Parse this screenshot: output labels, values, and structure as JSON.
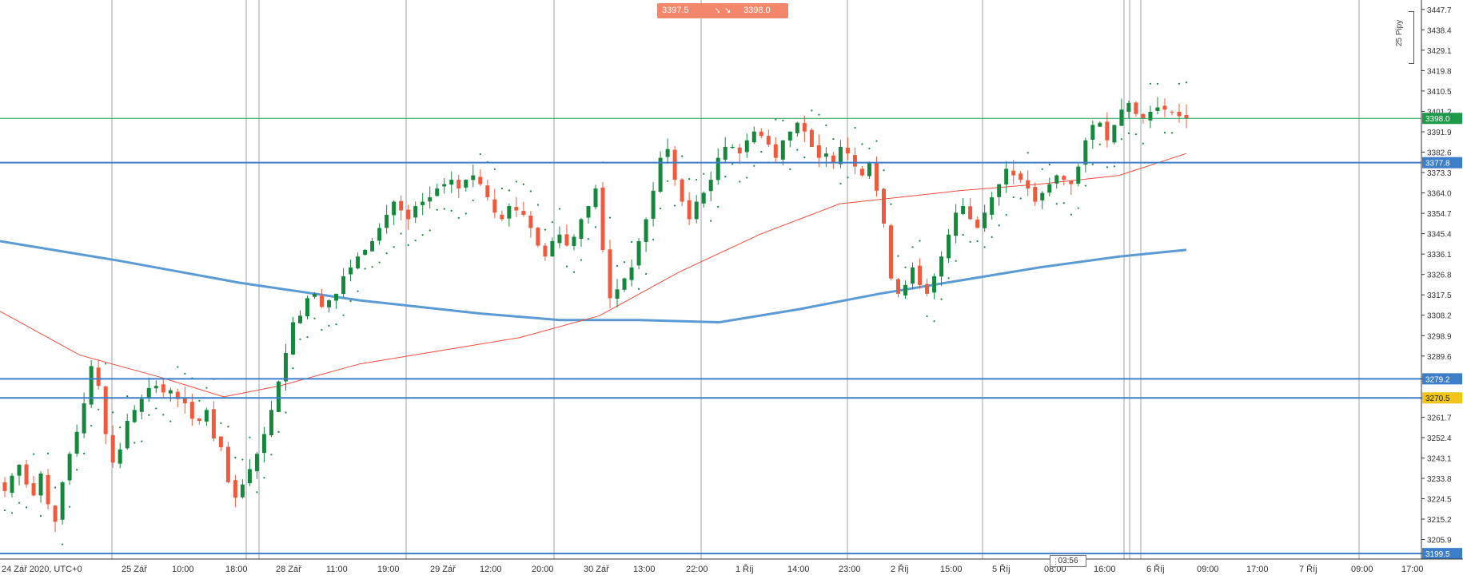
{
  "trade": {
    "sell_price": "3397.5",
    "buy_price": "3398.0",
    "sell_arrow": "↘",
    "buy_arrow": "↘"
  },
  "pips_label": "25 Pipy",
  "time_box": "03:56",
  "colors": {
    "up": "#15883e",
    "down": "#f0593b",
    "hline": "#3d7ec9",
    "ma_blue": "#5b9bd5",
    "ma_red": "#f04c3b",
    "current": "#1f9a4a",
    "highlight": "#f0c419"
  },
  "y_axis": {
    "labels": [
      "3447.7",
      "3438.4",
      "3429.1",
      "3419.8",
      "3410.5",
      "3401.2",
      "3391.9",
      "3382.6",
      "3373.3",
      "3364.0",
      "3354.7",
      "3345.4",
      "3336.1",
      "3326.8",
      "3317.5",
      "3308.2",
      "3298.9",
      "3289.6",
      "3279.2",
      "3270.5",
      "3261.7",
      "3252.4",
      "3243.1",
      "3233.8",
      "3224.5",
      "3215.2",
      "3205.9",
      "3199.5"
    ],
    "range": [
      3197,
      3452
    ]
  },
  "x_axis": {
    "labels": [
      "24 Zář 2020, UTC+0",
      "25 Zář",
      "10:00",
      "18:00",
      "28 Zář",
      "11:00",
      "19:00",
      "29 Zář",
      "12:00",
      "20:00",
      "30 Zář",
      "13:00",
      "22:00",
      "1 Říj",
      "14:00",
      "23:00",
      "2 Říj",
      "15:00",
      "5 Říj",
      "08:00",
      "16:00",
      "6 Říj",
      "09:00",
      "17:00",
      "7 Říj",
      "09:00",
      "17:00"
    ]
  },
  "price_tags": [
    {
      "label": "3398.0",
      "style": "current"
    },
    {
      "label": "3377.8",
      "style": "hline"
    },
    {
      "label": "3279.2",
      "style": "hline"
    },
    {
      "label": "3270.5",
      "style": "highlight"
    },
    {
      "label": "3199.5",
      "style": "hline"
    }
  ],
  "chart_data": {
    "type": "candlestick",
    "horizontal_levels": [
      3377.8,
      3279.2,
      3270.5,
      3199.5
    ],
    "current_price": 3398.0,
    "candles_close_approx": [
      3228,
      3235,
      3240,
      3231,
      3226,
      3236,
      3222,
      3214,
      3232,
      3245,
      3255,
      3268,
      3285,
      3276,
      3254,
      3241,
      3247,
      3260,
      3265,
      3270,
      3275,
      3276,
      3273,
      3274,
      3270,
      3268,
      3261,
      3260,
      3265,
      3252,
      3248,
      3232,
      3225,
      3231,
      3238,
      3245,
      3254,
      3265,
      3278,
      3291,
      3305,
      3308,
      3316,
      3318,
      3312,
      3315,
      3318,
      3326,
      3330,
      3335,
      3338,
      3342,
      3348,
      3354,
      3360,
      3356,
      3352,
      3358,
      3360,
      3362,
      3366,
      3368,
      3370,
      3366,
      3370,
      3372,
      3368,
      3362,
      3355,
      3352,
      3358,
      3356,
      3354,
      3348,
      3340,
      3335,
      3342,
      3345,
      3340,
      3344,
      3352,
      3358,
      3366,
      3338,
      3316,
      3320,
      3325,
      3330,
      3342,
      3352,
      3365,
      3380,
      3384,
      3370,
      3360,
      3352,
      3360,
      3364,
      3370,
      3380,
      3385,
      3385,
      3382,
      3388,
      3392,
      3390,
      3386,
      3380,
      3388,
      3392,
      3396,
      3392,
      3385,
      3380,
      3382,
      3378,
      3385,
      3382,
      3376,
      3372,
      3378,
      3365,
      3350,
      3325,
      3318,
      3322,
      3330,
      3322,
      3318,
      3326,
      3335,
      3345,
      3355,
      3358,
      3352,
      3348,
      3355,
      3362,
      3368,
      3375,
      3372,
      3370,
      3366,
      3360,
      3364,
      3368,
      3372,
      3370,
      3368,
      3376,
      3388,
      3395,
      3396,
      3388,
      3395,
      3402,
      3405,
      3400,
      3398,
      3401,
      3403,
      3402,
      3401,
      3399,
      3398
    ]
  }
}
